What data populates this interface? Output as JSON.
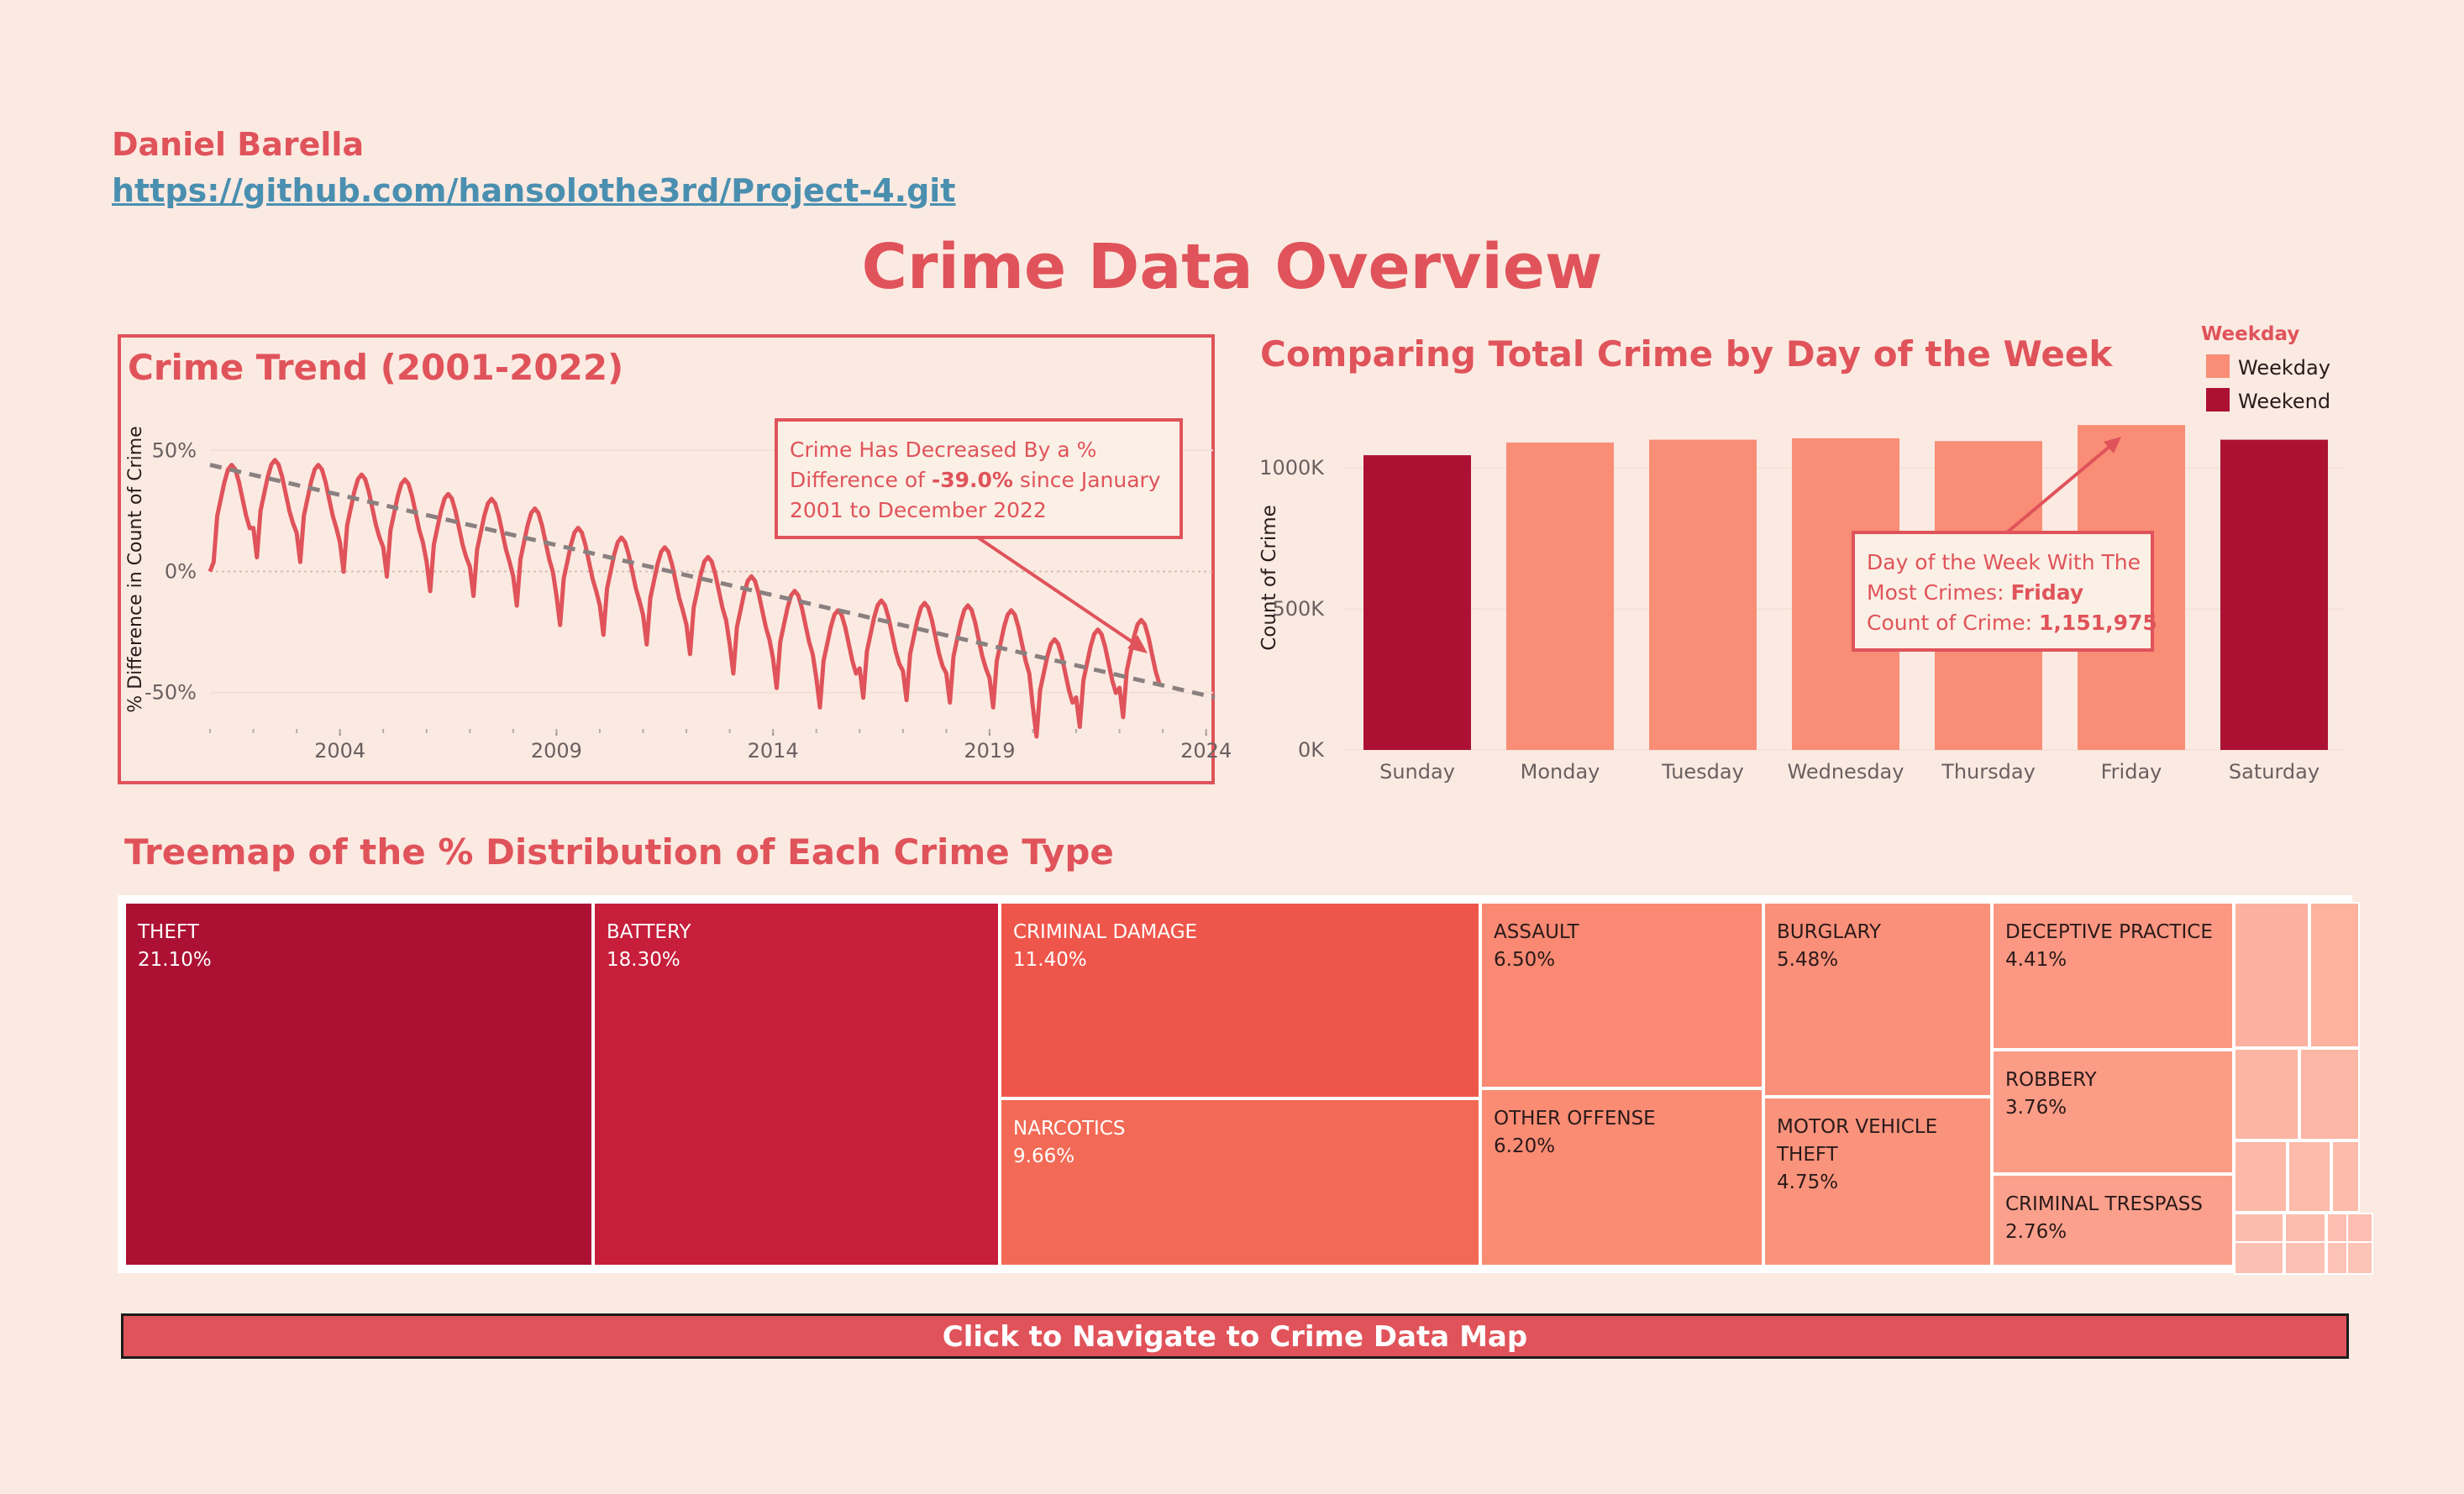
{
  "header": {
    "author": "Daniel Barella",
    "repo_link": "https://github.com/hansolothe3rd/Project-4.git",
    "title": "Crime Data Overview"
  },
  "colors": {
    "accent": "#e0535a",
    "link": "#4a8fb0",
    "background": "#fbeae2",
    "weekday": "#f98d76",
    "weekend": "#ac1134"
  },
  "chart_data": [
    {
      "type": "line",
      "title": "Crime Trend (2001-2022)",
      "ylabel": "% Difference in Count of Crime",
      "xlim": [
        2001,
        2024.2
      ],
      "ylim": [
        -65,
        65
      ],
      "x_ticks": [
        "2004",
        "2009",
        "2014",
        "2019",
        "2024"
      ],
      "y_ticks": [
        "50%",
        "0%",
        "-50%"
      ],
      "series": [
        {
          "values_by_year": [
            {
              "year": 2001,
              "base": 30
            },
            {
              "year": 2002,
              "base": 32
            },
            {
              "year": 2003,
              "base": 30
            },
            {
              "year": 2004,
              "base": 26
            },
            {
              "year": 2005,
              "base": 24
            },
            {
              "year": 2006,
              "base": 18
            },
            {
              "year": 2007,
              "base": 16
            },
            {
              "year": 2008,
              "base": 12
            },
            {
              "year": 2009,
              "base": 4
            },
            {
              "year": 2010,
              "base": 0
            },
            {
              "year": 2011,
              "base": -4
            },
            {
              "year": 2012,
              "base": -8
            },
            {
              "year": 2013,
              "base": -16
            },
            {
              "year": 2014,
              "base": -22
            },
            {
              "year": 2015,
              "base": -30
            },
            {
              "year": 2016,
              "base": -26
            },
            {
              "year": 2017,
              "base": -27
            },
            {
              "year": 2018,
              "base": -28
            },
            {
              "year": 2019,
              "base": -30
            },
            {
              "year": 2020,
              "base": -42
            },
            {
              "year": 2021,
              "base": -38
            },
            {
              "year": 2022,
              "base": -34
            }
          ]
        }
      ],
      "trend_line": {
        "from": [
          2001,
          44
        ],
        "to": [
          2024.2,
          -52
        ]
      },
      "annotation": {
        "prefix": "Crime Has  Decreased By a %",
        "line2a": "Difference of ",
        "value": "-39.0%",
        "line2b": "  since January",
        "line3": "2001 to  December 2022"
      }
    },
    {
      "type": "bar",
      "title": "Comparing Total Crime by Day of the Week",
      "ylabel": "Count of Crime",
      "ylim": [
        0,
        1200000
      ],
      "y_ticks": [
        "0K",
        "500K",
        "1000K"
      ],
      "categories": [
        "Sunday",
        "Monday",
        "Tuesday",
        "Wednesday",
        "Thursday",
        "Friday",
        "Saturday"
      ],
      "values": [
        1045000,
        1090000,
        1100000,
        1105000,
        1095000,
        1151975,
        1100000
      ],
      "groups": [
        "Weekend",
        "Weekday",
        "Weekday",
        "Weekday",
        "Weekday",
        "Weekday",
        "Weekend"
      ],
      "legend": {
        "title": "Weekday",
        "items": [
          "Weekday",
          "Weekend"
        ],
        "position": "top-right"
      },
      "annotation": {
        "line1": "Day of the Week With The",
        "line2": "Most Crimes: ",
        "line2_value": "Friday",
        "line3": "Count of Crime: ",
        "line3_value": "1,151,975"
      }
    },
    {
      "type": "treemap",
      "title": "Treemap of the % Distribution of Each Crime Type",
      "items": [
        {
          "label": "THEFT",
          "value": "21.10%"
        },
        {
          "label": "BATTERY",
          "value": "18.30%"
        },
        {
          "label": "CRIMINAL DAMAGE",
          "value": "11.40%"
        },
        {
          "label": "NARCOTICS",
          "value": "9.66%"
        },
        {
          "label": "ASSAULT",
          "value": "6.50%"
        },
        {
          "label": "OTHER OFFENSE",
          "value": "6.20%"
        },
        {
          "label": "BURGLARY",
          "value": "5.48%"
        },
        {
          "label": "MOTOR VEHICLE THEFT",
          "value": "4.75%"
        },
        {
          "label": "DECEPTIVE PRACTICE",
          "value": "4.41%"
        },
        {
          "label": "ROBBERY",
          "value": "3.76%"
        },
        {
          "label": "CRIMINAL TRESPASS",
          "value": "2.76%"
        }
      ]
    }
  ],
  "nav_button": {
    "label": "Click to Navigate to Crime Data Map"
  }
}
